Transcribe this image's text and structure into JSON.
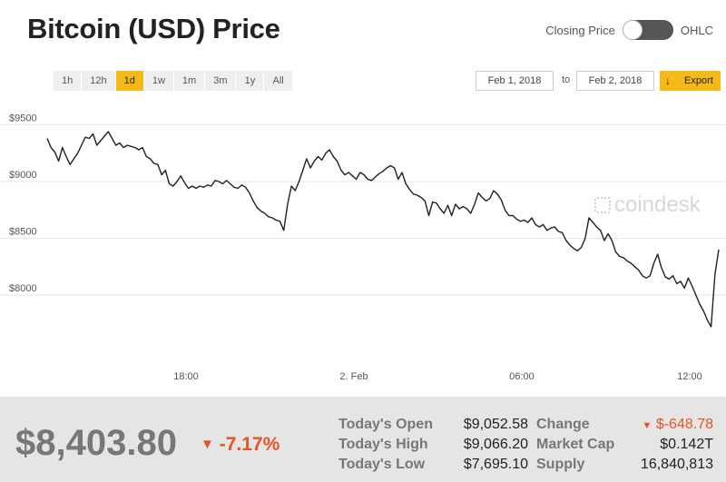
{
  "header": {
    "title": "Bitcoin (USD) Price",
    "toggle_left": "Closing Price",
    "toggle_right": "OHLC"
  },
  "range_buttons": [
    {
      "label": "1h",
      "active": false
    },
    {
      "label": "12h",
      "active": false
    },
    {
      "label": "1d",
      "active": true
    },
    {
      "label": "1w",
      "active": false
    },
    {
      "label": "1m",
      "active": false
    },
    {
      "label": "3m",
      "active": false
    },
    {
      "label": "1y",
      "active": false
    },
    {
      "label": "All",
      "active": false
    }
  ],
  "date_range": {
    "from": "Feb 1, 2018",
    "to_label": "to",
    "to": "Feb 2, 2018",
    "export_label": "Export"
  },
  "watermark": "coindesk",
  "colors": {
    "accent": "#f6b91a",
    "negative": "#e8541f",
    "line": "#222222"
  },
  "chart_data": {
    "type": "line",
    "ylim": [
      7400,
      9800
    ],
    "y_ticks": [
      {
        "label": "$9500",
        "value": 9500
      },
      {
        "label": "$9000",
        "value": 9000
      },
      {
        "label": "$8500",
        "value": 8500
      },
      {
        "label": "$8000",
        "value": 8000
      }
    ],
    "x_ticks": [
      "18:00",
      "2. Feb",
      "06:00",
      "12:00"
    ],
    "series": [
      {
        "values": [
          9380,
          9300,
          9260,
          9180,
          9300,
          9220,
          9150,
          9200,
          9250,
          9320,
          9390,
          9380,
          9420,
          9320,
          9360,
          9400,
          9440,
          9380,
          9320,
          9340,
          9300,
          9320,
          9310,
          9300,
          9280,
          9300,
          9220,
          9200,
          9160,
          9150,
          9060,
          9100,
          8980,
          8960,
          9000,
          9050,
          8990,
          8940,
          8960,
          8940,
          8960,
          8950,
          8970,
          8960,
          9010,
          9000,
          8980,
          9010,
          8980,
          8950,
          8940,
          8970,
          8950,
          8900,
          8830,
          8770,
          8740,
          8720,
          8690,
          8680,
          8660,
          8650,
          8570,
          8800,
          8960,
          8920,
          9000,
          9100,
          9200,
          9120,
          9180,
          9220,
          9190,
          9250,
          9280,
          9220,
          9180,
          9100,
          9060,
          9080,
          9050,
          9020,
          9080,
          9060,
          9020,
          9010,
          9040,
          9070,
          9090,
          9120,
          9140,
          9120,
          9020,
          9080,
          8980,
          8930,
          8890,
          8880,
          8860,
          8830,
          8700,
          8820,
          8810,
          8760,
          8720,
          8790,
          8700,
          8800,
          8760,
          8780,
          8760,
          8720,
          8800,
          8900,
          8860,
          8830,
          8850,
          8920,
          8890,
          8840,
          8750,
          8700,
          8700,
          8670,
          8650,
          8660,
          8640,
          8680,
          8620,
          8600,
          8620,
          8570,
          8590,
          8600,
          8560,
          8550,
          8480,
          8440,
          8410,
          8390,
          8420,
          8500,
          8680,
          8640,
          8600,
          8570,
          8480,
          8540,
          8480,
          8380,
          8340,
          8330,
          8300,
          8280,
          8250,
          8220,
          8170,
          8150,
          8170,
          8280,
          8360,
          8240,
          8160,
          8140,
          8170,
          8100,
          8120,
          8060,
          8150,
          8080,
          8000,
          7920,
          7860,
          7780,
          7720,
          8180,
          8400
        ]
      }
    ]
  },
  "summary": {
    "price": "$8,403.80",
    "change_pct": "-7.17%",
    "stats": [
      {
        "label": "Today's Open",
        "value": "$9,052.58"
      },
      {
        "label": "Today's High",
        "value": "$9,066.20"
      },
      {
        "label": "Today's Low",
        "value": "$7,695.10"
      },
      {
        "label": "Change",
        "value": "$-648.78"
      },
      {
        "label": "Market Cap",
        "value": "$0.142T"
      },
      {
        "label": "Supply",
        "value": "16,840,813"
      }
    ]
  }
}
